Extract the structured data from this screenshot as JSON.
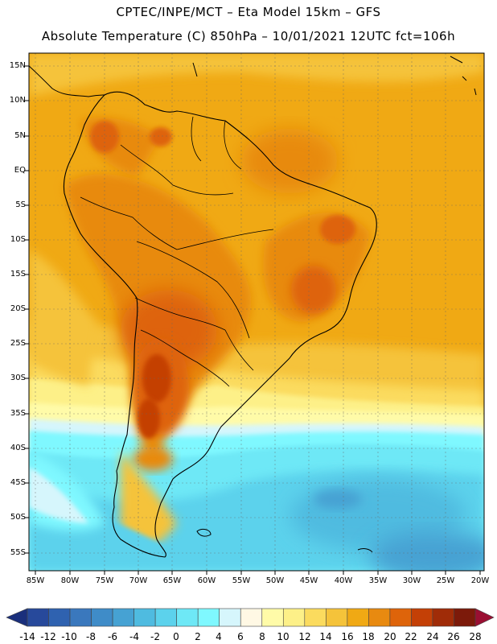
{
  "header": {
    "line1": "CPTEC/INPE/MCT –  Eta Model 15km – GFS",
    "line2": "Absolute Temperature (C) 850hPa – 10/01/2021 12UTC fct=106h"
  },
  "map": {
    "region": "South America",
    "lat_labels": [
      "15N",
      "10N",
      "5N",
      "EQ",
      "5S",
      "10S",
      "15S",
      "20S",
      "25S",
      "30S",
      "35S",
      "40S",
      "45S",
      "50S",
      "55S"
    ],
    "lon_labels": [
      "85W",
      "80W",
      "75W",
      "70W",
      "65W",
      "60W",
      "55W",
      "50W",
      "45W",
      "40W",
      "35W",
      "30W",
      "25W",
      "20W"
    ]
  },
  "colorbar": {
    "tick_labels": [
      "-14",
      "-12",
      "-10",
      "-8",
      "-6",
      "-4",
      "-2",
      "0",
      "2",
      "4",
      "6",
      "8",
      "10",
      "12",
      "14",
      "16",
      "18",
      "20",
      "22",
      "24",
      "26",
      "28"
    ],
    "colors": [
      "#1a2f7c",
      "#27499b",
      "#2f62b0",
      "#3a78bd",
      "#3f8cc8",
      "#46a2d3",
      "#4fbbe0",
      "#5cd2ec",
      "#6ee8f6",
      "#7ff8ff",
      "#d6f6fc",
      "#fff8e4",
      "#fffba8",
      "#fdf088",
      "#fbdb5e",
      "#f5c33a",
      "#f0a914",
      "#e88a10",
      "#de640a",
      "#c44006",
      "#a02c08",
      "#7c1a0a",
      "#9a0f32"
    ]
  }
}
